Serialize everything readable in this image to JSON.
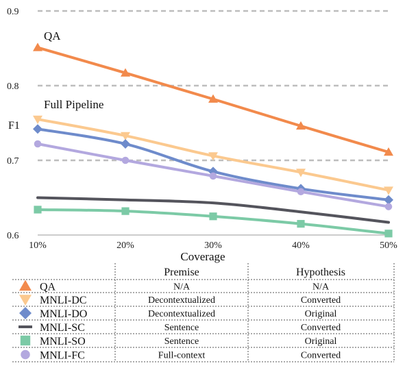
{
  "chart_data": {
    "type": "line",
    "x": [
      "10%",
      "20%",
      "30%",
      "40%",
      "50%"
    ],
    "xlabel": "Coverage",
    "ylabel": "F1",
    "ylim": [
      0.6,
      0.9
    ],
    "yticks": [
      "0.6",
      "0.7",
      "0.8",
      "0.9"
    ],
    "grid": "dashed horizontal at 0.7, 0.8, 0.9",
    "annotations": [
      "QA",
      "Full Pipeline"
    ],
    "series": [
      {
        "name": "QA",
        "marker": "triangle",
        "color": "#f28a4c",
        "values": [
          0.851,
          0.817,
          0.782,
          0.746,
          0.711
        ]
      },
      {
        "name": "MNLI-DC",
        "marker": "triangle-down",
        "color": "#fbc98f",
        "values": [
          0.755,
          0.733,
          0.706,
          0.684,
          0.66
        ]
      },
      {
        "name": "MNLI-DO",
        "marker": "diamond",
        "color": "#6e8bcb",
        "values": [
          0.742,
          0.722,
          0.685,
          0.662,
          0.647
        ]
      },
      {
        "name": "MNLI-SC",
        "marker": "none",
        "color": "#54545c",
        "values": [
          0.65,
          0.647,
          0.643,
          0.631,
          0.617
        ]
      },
      {
        "name": "MNLI-SO",
        "marker": "square",
        "color": "#7ccaa6",
        "values": [
          0.634,
          0.632,
          0.625,
          0.615,
          0.602
        ]
      },
      {
        "name": "MNLI-FC",
        "marker": "circle",
        "color": "#b3a8df",
        "values": [
          0.722,
          0.7,
          0.679,
          0.658,
          0.638
        ]
      }
    ]
  },
  "legend_table": {
    "headers": [
      "Premise",
      "Hypothesis"
    ],
    "rows": [
      {
        "name": "QA",
        "premise": "N/A",
        "hypothesis": "N/A"
      },
      {
        "name": "MNLI-DC",
        "premise": "Decontextualized",
        "hypothesis": "Converted"
      },
      {
        "name": "MNLI-DO",
        "premise": "Decontextualized",
        "hypothesis": "Original"
      },
      {
        "name": "MNLI-SC",
        "premise": "Sentence",
        "hypothesis": "Converted"
      },
      {
        "name": "MNLI-SO",
        "premise": "Sentence",
        "hypothesis": "Original"
      },
      {
        "name": "MNLI-FC",
        "premise": "Full-context",
        "hypothesis": "Converted"
      }
    ]
  }
}
